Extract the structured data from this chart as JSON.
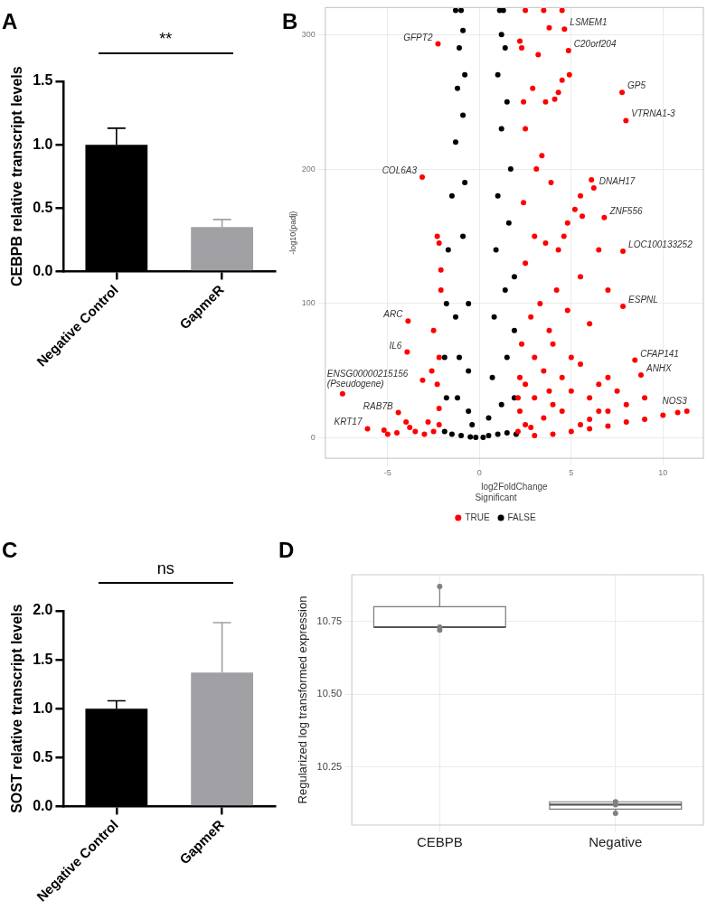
{
  "chart_data": [
    {
      "type": "bar",
      "title": "A",
      "ylabel": "CEBPB relative transcript levels",
      "categories": [
        "Negative Control",
        "GapmeR"
      ],
      "values": [
        1.0,
        0.35
      ],
      "colors": [
        "#000000",
        "#a0a0a4"
      ],
      "errors": [
        [
          1.0,
          1.13
        ],
        [
          0.35,
          0.41
        ]
      ],
      "ylim": [
        0,
        1.5
      ],
      "yticks": [
        {
          "value": 0,
          "label": "0.0"
        },
        {
          "value": 0.5,
          "label": "0.5"
        },
        {
          "value": 1,
          "label": "1.0"
        },
        {
          "value": 1.5,
          "label": "1.5"
        }
      ],
      "annotations": [
        "**"
      ]
    },
    {
      "type": "scatter",
      "title": "B",
      "xlabel": "log2FoldChange",
      "ylabel": "-log10(padj)",
      "legend_title": "Significant",
      "legend": "bottom",
      "grid": true,
      "marker": "circle",
      "xlim": [
        -8.4,
        12.2
      ],
      "ylim": [
        -15,
        320
      ],
      "xticks": [
        -5,
        0,
        5,
        10
      ],
      "yticks": [
        0,
        100,
        200,
        300
      ],
      "series": [
        {
          "name": "TRUE",
          "color": "#ff0000",
          "x": [
            -2.26,
            -3.12,
            7.77,
            7.98,
            4.85,
            4.63,
            6.23,
            6.8,
            7.82,
            7.82,
            -3.89,
            -3.94,
            -7.46,
            -4.42,
            -6.1,
            8.47,
            8.8,
            11.3,
            -2.2,
            -2.5,
            -3,
            -3.8,
            -4.5,
            -5,
            -2.3,
            -2.2,
            -2.5,
            -2.1,
            -2.2,
            -2.3,
            -2.1,
            -2.6,
            -3.1,
            -2.2,
            -2.8,
            -3.5,
            -4,
            -5.2,
            3,
            4,
            5,
            6,
            7,
            8,
            9,
            10,
            10.8,
            6,
            7,
            5.5,
            2.2,
            2.5,
            3,
            3.5,
            4,
            4.5,
            5,
            5.5,
            6,
            6.5,
            7,
            2.3,
            2.8,
            3.3,
            3.8,
            4.2,
            4.8,
            5.5,
            6,
            6.5,
            7,
            2.5,
            3,
            3.6,
            4.3,
            4.8,
            5.2,
            5.5,
            2.4,
            3.1,
            3.4,
            2.5,
            2.9,
            3.6,
            4.1,
            4.3,
            4.9,
            4.5,
            3.2,
            2.3,
            3.8,
            2.2,
            6.1,
            5.6,
            4.6,
            3.9,
            2.4,
            2.1,
            2.5,
            3.5,
            4.5,
            2.2,
            2.1,
            3,
            4,
            5,
            2.8,
            3.8,
            6.5,
            8,
            7.5,
            9,
            2.5,
            3.5,
            4.5
          ],
          "values": [
            293,
            194,
            257,
            236,
            288,
            304,
            186,
            164,
            139,
            98,
            87,
            64,
            33,
            19,
            7,
            58,
            47,
            20,
            10,
            5,
            3,
            8,
            4,
            3,
            40,
            60,
            80,
            110,
            145,
            150,
            125,
            50,
            43,
            22,
            12,
            5,
            12,
            6,
            2,
            3,
            5,
            7,
            9,
            12,
            14,
            17,
            19,
            14,
            20,
            10,
            20,
            40,
            30,
            50,
            25,
            45,
            35,
            55,
            30,
            40,
            45,
            70,
            90,
            100,
            80,
            110,
            95,
            120,
            85,
            140,
            110,
            130,
            150,
            145,
            140,
            160,
            170,
            180,
            175,
            200,
            210,
            230,
            260,
            250,
            252,
            257,
            270,
            266,
            285,
            290,
            305,
            295,
            192,
            165,
            150,
            190,
            250,
            5,
            10,
            15,
            20,
            45,
            30,
            60,
            70,
            60,
            8,
            35,
            20,
            25,
            35,
            30,
            318,
            318,
            318
          ]
        },
        {
          "name": "FALSE",
          "color": "#000000",
          "x": [
            -1.9,
            -1.5,
            -1,
            -0.5,
            -0.2,
            -1.8,
            -1.2,
            -0.6,
            -0.4,
            -1.9,
            -1.1,
            -0.6,
            -1.8,
            -1.3,
            -0.6,
            -1.7,
            -0.9,
            -1.5,
            -0.8,
            -1.3,
            -0.9,
            -1.2,
            -0.8,
            -1.1,
            -0.9,
            -1,
            0.2,
            0.5,
            1,
            1.5,
            2,
            0.5,
            1.2,
            1.9,
            0.7,
            1.5,
            1.9,
            0.8,
            1.4,
            1.9,
            0.9,
            1.6,
            1,
            1.7,
            1.2,
            1.5,
            1,
            1.4,
            1.2,
            1.3,
            -1.3,
            1.1
          ],
          "values": [
            5,
            3,
            2,
            1,
            0.5,
            30,
            30,
            20,
            10,
            60,
            60,
            50,
            100,
            90,
            100,
            140,
            150,
            180,
            190,
            220,
            240,
            260,
            270,
            290,
            303,
            318,
            0.5,
            2,
            3,
            4,
            3,
            15,
            25,
            30,
            45,
            60,
            80,
            90,
            110,
            120,
            140,
            160,
            180,
            200,
            230,
            250,
            270,
            290,
            300,
            318,
            318,
            318
          ]
        }
      ],
      "annotations": [
        {
          "text": "GFPT2",
          "x": -2.26,
          "y": 293
        },
        {
          "text": "COL6A3",
          "x": -3.12,
          "y": 194
        },
        {
          "text": "GP5",
          "x": 7.77,
          "y": 257
        },
        {
          "text": "VTRNA1-3",
          "x": 7.98,
          "y": 236
        },
        {
          "text": "C20orf204",
          "x": 4.85,
          "y": 288
        },
        {
          "text": "LSMEM1",
          "x": 4.63,
          "y": 304
        },
        {
          "text": "DNAH17",
          "x": 6.23,
          "y": 186
        },
        {
          "text": "ZNF556",
          "x": 6.8,
          "y": 164
        },
        {
          "text": "LOC100133252",
          "x": 7.82,
          "y": 139
        },
        {
          "text": "ESPNL",
          "x": 7.82,
          "y": 98
        },
        {
          "text": "ARC",
          "x": -3.89,
          "y": 87
        },
        {
          "text": "IL6",
          "x": -3.94,
          "y": 64
        },
        {
          "text": "ENSG00000215156 (Pseudogene)",
          "x": -7.46,
          "y": 33
        },
        {
          "text": "RAB7B",
          "x": -4.42,
          "y": 19
        },
        {
          "text": "KRT17",
          "x": -6.1,
          "y": 7
        },
        {
          "text": "CFAP141",
          "x": 8.47,
          "y": 58
        },
        {
          "text": "ANHX",
          "x": 8.8,
          "y": 47
        },
        {
          "text": "NOS3",
          "x": 11.3,
          "y": 20
        }
      ]
    },
    {
      "type": "bar",
      "title": "C",
      "ylabel": "SOST relative transcript levels",
      "categories": [
        "Negative Control",
        "GapmeR"
      ],
      "values": [
        1.0,
        1.37
      ],
      "colors": [
        "#000000",
        "#a0a0a4"
      ],
      "errors": [
        [
          1.0,
          1.08
        ],
        [
          1.37,
          1.88
        ]
      ],
      "ylim": [
        0,
        2
      ],
      "yticks": [
        {
          "value": 0,
          "label": "0.0"
        },
        {
          "value": 0.5,
          "label": "0.5"
        },
        {
          "value": 1,
          "label": "1.0"
        },
        {
          "value": 1.5,
          "label": "1.5"
        },
        {
          "value": 2,
          "label": "2.0"
        }
      ],
      "annotations": [
        "ns"
      ]
    },
    {
      "type": "box",
      "title": "D",
      "ylabel": "Regularized log transformed expression",
      "categories": [
        "CEBPB",
        "Negative"
      ],
      "grid": true,
      "ylim": [
        10.05,
        10.91
      ],
      "yticks": [
        10.25,
        {
          "value": 10.5,
          "label": "10.50"
        },
        10.75
      ],
      "boxes": [
        {
          "low": 10.73,
          "q1": 10.73,
          "median": 10.73,
          "q3": 10.8,
          "high": 10.87
        },
        {
          "low": 10.09,
          "q1": 10.105,
          "median": 10.12,
          "q3": 10.13,
          "high": 10.13
        }
      ],
      "series": [
        {
          "type": "scatter",
          "color": "#808080",
          "x": [
            "CEBPB",
            "CEBPB",
            "CEBPB",
            "Negative",
            "Negative",
            "Negative"
          ],
          "values": [
            10.72,
            10.73,
            10.87,
            10.12,
            10.13,
            10.09
          ]
        }
      ]
    }
  ]
}
